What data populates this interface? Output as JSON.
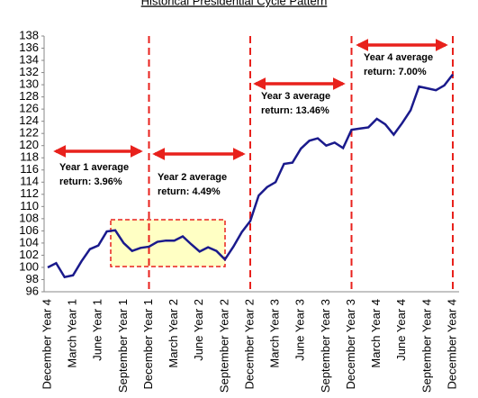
{
  "chart_data": {
    "type": "line",
    "title": "Historical Presidential Cycle Pattern",
    "categories": [
      "December Year 4",
      null,
      null,
      "March Year 1",
      null,
      null,
      "June Year 1",
      null,
      null,
      "September Year 1",
      null,
      null,
      "December Year 1",
      null,
      null,
      "March Year 2",
      null,
      null,
      "June Year 2",
      null,
      null,
      "September Year 2",
      null,
      null,
      "December Year 2",
      null,
      null,
      "March Year 3",
      null,
      null,
      "June Year 3",
      null,
      null,
      "September Year 3",
      null,
      null,
      "December Year 3",
      null,
      null,
      "March Year 4",
      null,
      null,
      "June Year 4",
      null,
      null,
      "September Year 4",
      null,
      null,
      "December Year 4"
    ],
    "series": [
      {
        "color": "#1a1a8c",
        "values": [
          100.0,
          100.7,
          98.4,
          98.7,
          101,
          103,
          103.6,
          105.9,
          106.1,
          104,
          102.7,
          103.2,
          103.4,
          104.2,
          104.4,
          104.4,
          105.1,
          103.8,
          102.6,
          103.3,
          102.7,
          101.3,
          103.4,
          105.8,
          107.6,
          111.8,
          113.2,
          114,
          117,
          117.2,
          119.5,
          120.8,
          121.2,
          120,
          120.5,
          119.6,
          122.6,
          122.8,
          123,
          124.4,
          123.5,
          121.8,
          123.7,
          125.8,
          129.7,
          129.4,
          129.1,
          129.9,
          131.7
        ]
      }
    ],
    "ylim": [
      96,
      138
    ],
    "yticks": [
      96,
      98,
      100,
      102,
      104,
      106,
      108,
      110,
      112,
      114,
      116,
      118,
      120,
      122,
      124,
      126,
      128,
      130,
      132,
      134,
      136,
      138
    ],
    "annotations": [
      [
        "Year 1 average",
        "return: 3.96%"
      ],
      [
        "Year 2 average",
        "return: 4.49%"
      ],
      [
        "Year 3 average",
        "return: 13.46%"
      ],
      [
        "Year 4 average",
        "return: 7.00%"
      ]
    ]
  }
}
